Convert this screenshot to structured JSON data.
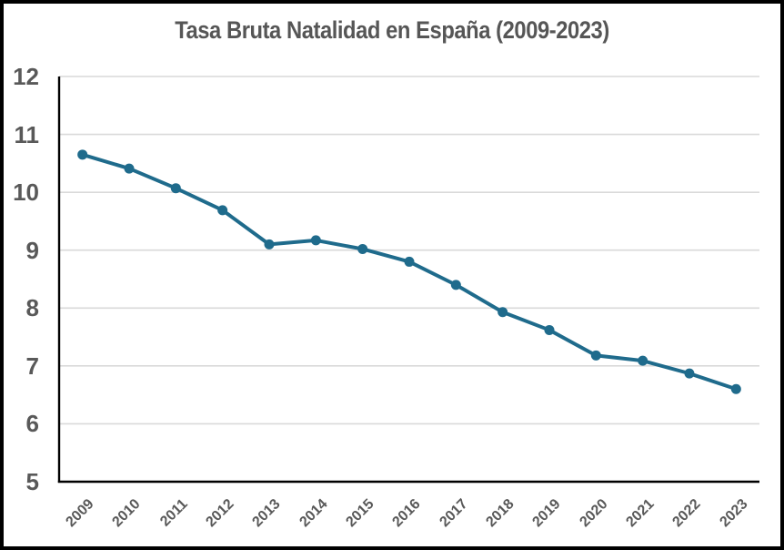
{
  "chart_data": {
    "type": "line",
    "title": "Tasa Bruta Natalidad en España (2009-2023)",
    "categories": [
      "2009",
      "2010",
      "2011",
      "2012",
      "2013",
      "2014",
      "2015",
      "2016",
      "2017",
      "2018",
      "2019",
      "2020",
      "2021",
      "2022",
      "2023"
    ],
    "values": [
      10.65,
      10.41,
      10.07,
      9.69,
      9.1,
      9.17,
      9.02,
      8.8,
      8.4,
      7.93,
      7.62,
      7.18,
      7.09,
      6.87,
      6.6
    ],
    "xlabel": "",
    "ylabel": "",
    "ylim": [
      5,
      12
    ],
    "yticks": [
      12,
      11,
      10,
      9,
      8,
      7,
      6,
      5
    ],
    "grid": true,
    "legend": false,
    "marker": "circle",
    "colors": {
      "line": "#1f6b8c",
      "marker": "#1f6b8c",
      "grid": "#d9d9d9",
      "axis": "#000000",
      "tick_text": "#595959",
      "title_text": "#565656",
      "background": "#ffffff",
      "frame_border": "#000000"
    }
  }
}
